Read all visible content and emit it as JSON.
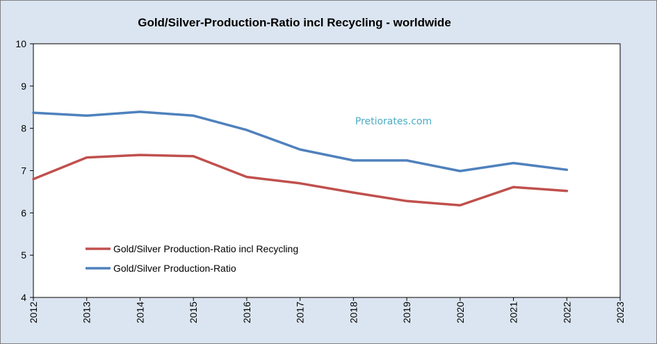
{
  "chart_data": {
    "type": "line",
    "title": "Gold/Silver-Production-Ratio incl Recycling - worldwide",
    "xlabel": "",
    "ylabel": "",
    "x": [
      2012,
      2013,
      2014,
      2015,
      2016,
      2017,
      2018,
      2019,
      2020,
      2021,
      2022
    ],
    "x_ticks": [
      "2012",
      "2013",
      "2014",
      "2015",
      "2016",
      "2017",
      "2018",
      "2019",
      "2020",
      "2021",
      "2022",
      "2023"
    ],
    "xlim": [
      2012,
      2023
    ],
    "ylim": [
      4,
      10
    ],
    "y_ticks": [
      "4",
      "5",
      "6",
      "7",
      "8",
      "9",
      "10"
    ],
    "grid": false,
    "legend_position": "bottom-left",
    "series": [
      {
        "name": "Gold/Silver Production-Ratio incl Recycling",
        "color": "#c0504d",
        "values": [
          6.8,
          7.31,
          7.37,
          7.34,
          6.85,
          6.7,
          6.48,
          6.28,
          6.18,
          6.61,
          6.52
        ]
      },
      {
        "name": "Gold/Silver Production-Ratio",
        "color": "#4f81bd",
        "values": [
          8.37,
          8.3,
          8.39,
          8.3,
          7.96,
          7.5,
          7.24,
          7.24,
          6.99,
          7.18,
          7.02
        ]
      }
    ],
    "watermark": "Pretiorates.com",
    "watermark_color": "#4bacc6",
    "background_color": "#dbe5f1",
    "plot_background_color": "#ffffff"
  }
}
